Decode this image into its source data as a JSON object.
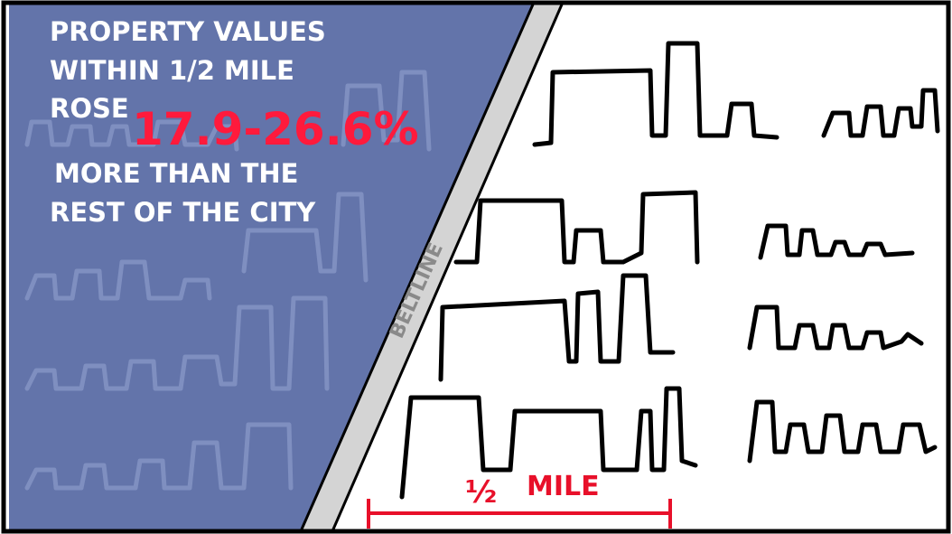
{
  "headline": {
    "lines": [
      "PROPERTY VALUES",
      "WITHIN 1/2 MILE",
      "ROSE",
      "MORE THAN THE",
      "REST OF THE CITY"
    ],
    "range": "17.9-26.6%"
  },
  "beltline_label": "BELTLINE",
  "scale": {
    "fraction": "½",
    "unit": "MILE"
  }
}
